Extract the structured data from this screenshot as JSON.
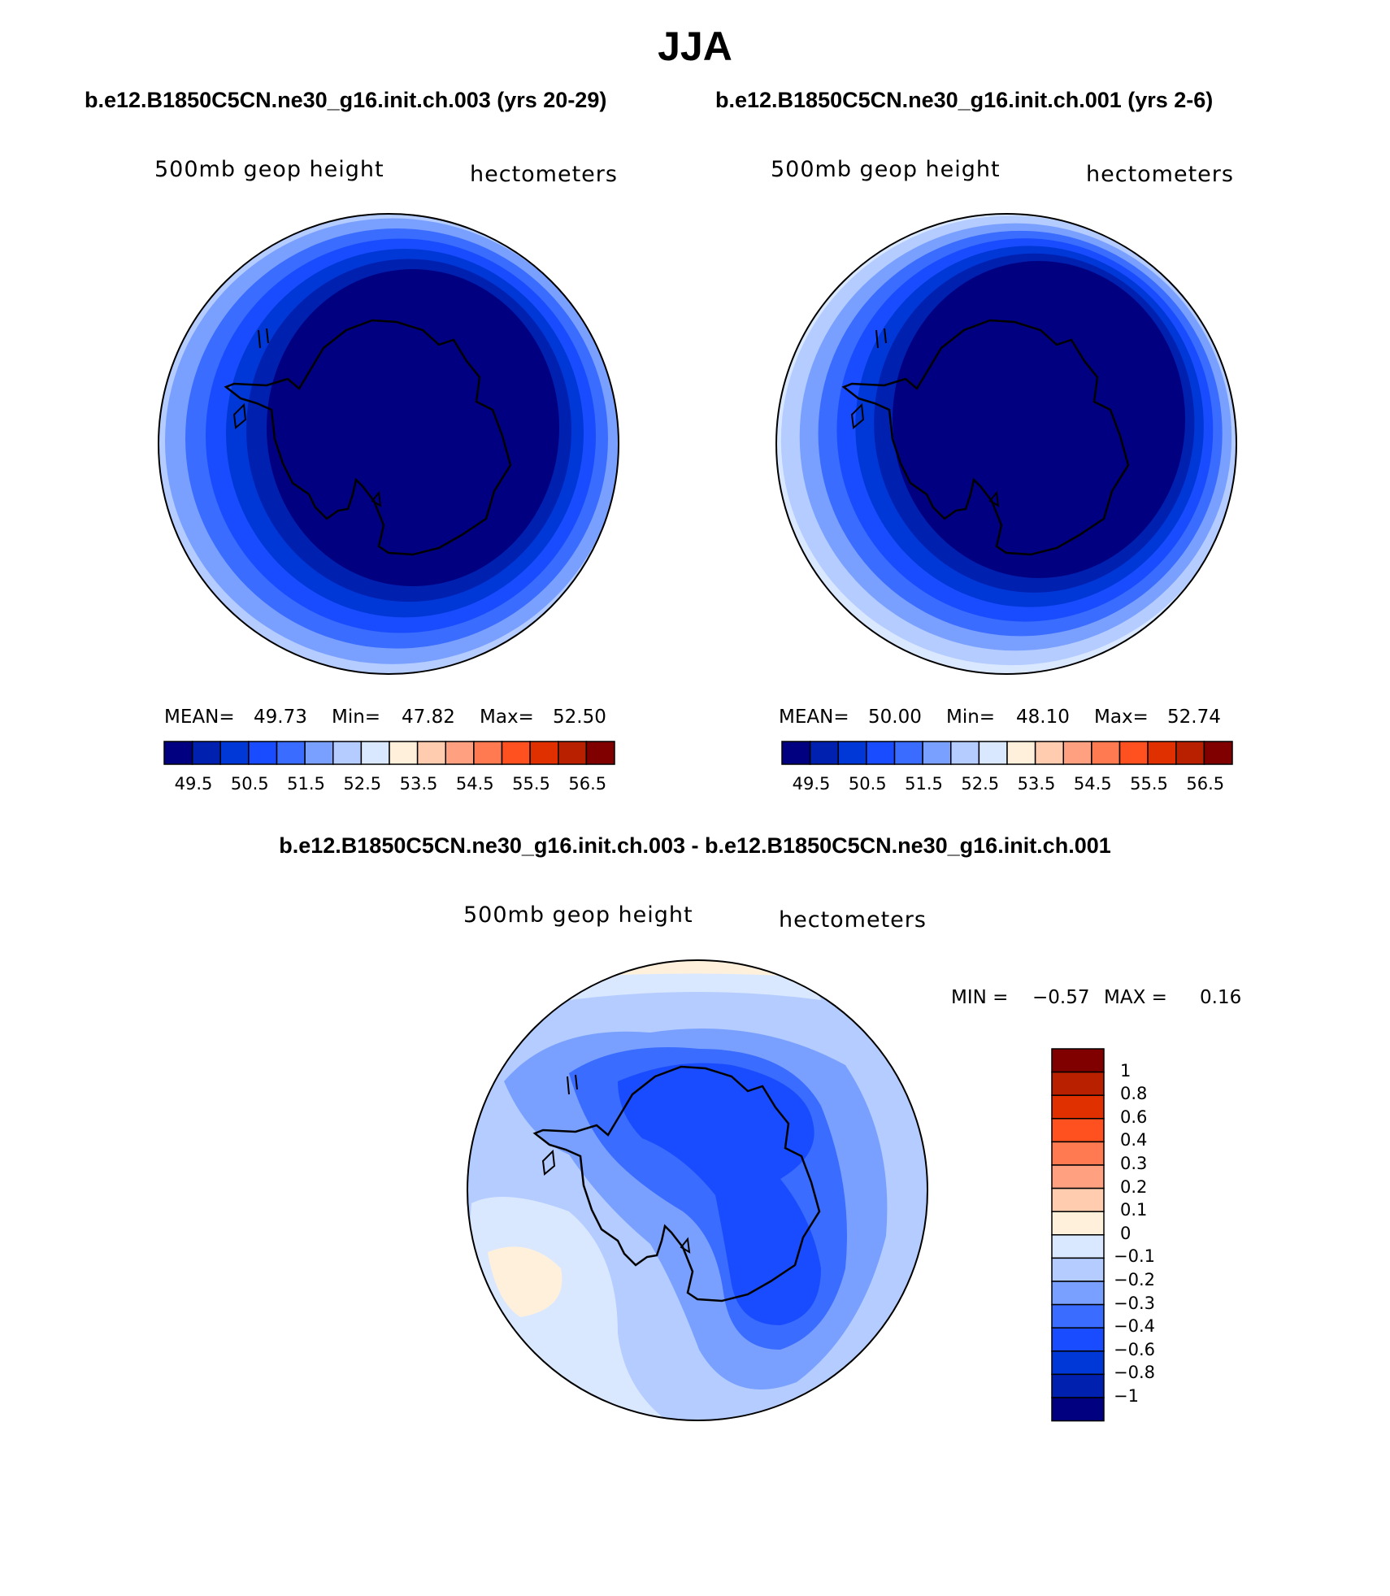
{
  "page": {
    "title": "JJA",
    "colors": {
      "land_outline": "#000000",
      "coast": "#000000"
    }
  },
  "panels": [
    {
      "case_title": "b.e12.B1850C5CN.ne30_g16.init.ch.003 (yrs 20-29)",
      "variable": "500mb geop height",
      "units": "hectometers",
      "stats": {
        "mean_label": "MEAN=",
        "mean": "49.73",
        "min_label": "Min=",
        "min": "47.82",
        "max_label": "Max=",
        "max": "52.50"
      },
      "colorbar": {
        "colors": [
          "#000080",
          "#0020b0",
          "#0038d8",
          "#1a4cff",
          "#3a6cff",
          "#7aa0ff",
          "#b4ccff",
          "#dae8ff",
          "#fff0dc",
          "#ffccb0",
          "#ffa080",
          "#ff7a50",
          "#ff5020",
          "#e03000",
          "#b82000",
          "#800000"
        ],
        "ticks": [
          "49.5",
          "50.5",
          "51.5",
          "52.5",
          "53.5",
          "54.5",
          "55.5",
          "56.5"
        ]
      },
      "field_levels": [
        "#b4ccff",
        "#7aa0ff",
        "#3a6cff",
        "#1a4cff",
        "#0038d8",
        "#0020b0",
        "#000080"
      ]
    },
    {
      "case_title": "b.e12.B1850C5CN.ne30_g16.init.ch.001 (yrs 2-6)",
      "variable": "500mb geop height",
      "units": "hectometers",
      "stats": {
        "mean_label": "MEAN=",
        "mean": "50.00",
        "min_label": "Min=",
        "min": "48.10",
        "max_label": "Max=",
        "max": "52.74"
      },
      "colorbar": {
        "colors": [
          "#000080",
          "#0020b0",
          "#0038d8",
          "#1a4cff",
          "#3a6cff",
          "#7aa0ff",
          "#b4ccff",
          "#dae8ff",
          "#fff0dc",
          "#ffccb0",
          "#ffa080",
          "#ff7a50",
          "#ff5020",
          "#e03000",
          "#b82000",
          "#800000"
        ],
        "ticks": [
          "49.5",
          "50.5",
          "51.5",
          "52.5",
          "53.5",
          "54.5",
          "55.5",
          "56.5"
        ]
      },
      "field_levels": [
        "#dae8ff",
        "#b4ccff",
        "#7aa0ff",
        "#3a6cff",
        "#1a4cff",
        "#0038d8",
        "#0020b0",
        "#000080"
      ]
    }
  ],
  "difference": {
    "title": "b.e12.B1850C5CN.ne30_g16.init.ch.003 - b.e12.B1850C5CN.ne30_g16.init.ch.001",
    "variable": "500mb geop height",
    "units": "hectometers",
    "stats": {
      "min_label": "MIN =",
      "min": "−0.57",
      "max_label": "MAX =",
      "max": "0.16"
    },
    "colorbar": {
      "colors": [
        "#800000",
        "#b82000",
        "#e03000",
        "#ff5020",
        "#ff7a50",
        "#ffa080",
        "#ffccb0",
        "#fff0dc",
        "#dae8ff",
        "#b4ccff",
        "#7aa0ff",
        "#3a6cff",
        "#1a4cff",
        "#0038d8",
        "#0020b0",
        "#000080"
      ],
      "labels": [
        "1",
        "0.8",
        "0.6",
        "0.4",
        "0.3",
        "0.2",
        "0.1",
        "0",
        "−0.1",
        "−0.2",
        "−0.3",
        "−0.4",
        "−0.6",
        "−0.8",
        "−1"
      ]
    }
  }
}
